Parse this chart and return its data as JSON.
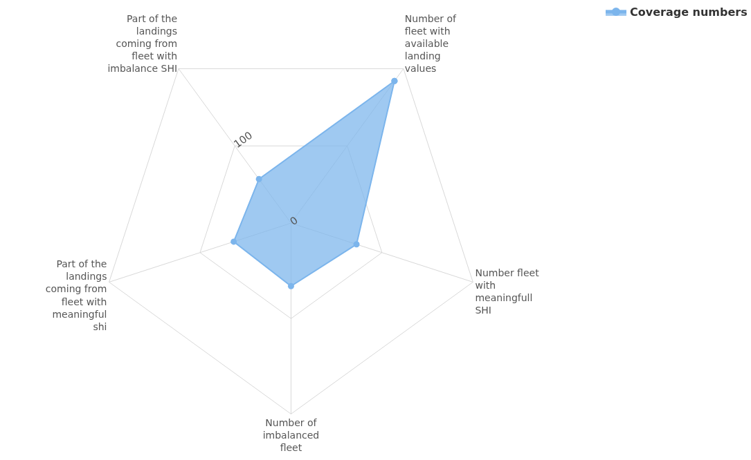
{
  "chart_data": {
    "type": "radar",
    "categories": [
      "Number of fleet with available landing values",
      "Number fleet with meaningfull SHI",
      "Number of imbalanced fleet",
      "Part of the landings coming from fleet with meaningful shi",
      "Part of the landings coming from fleet with imbalance SHI"
    ],
    "series": [
      {
        "name": "Coverage numbers",
        "color": "#7cb5ec",
        "values": [
          184,
          72,
          66,
          63,
          57
        ]
      }
    ],
    "ylim": [
      0,
      200
    ],
    "yticks": [
      0,
      100
    ],
    "grid": true,
    "legend": "top right",
    "marker": "circle"
  }
}
